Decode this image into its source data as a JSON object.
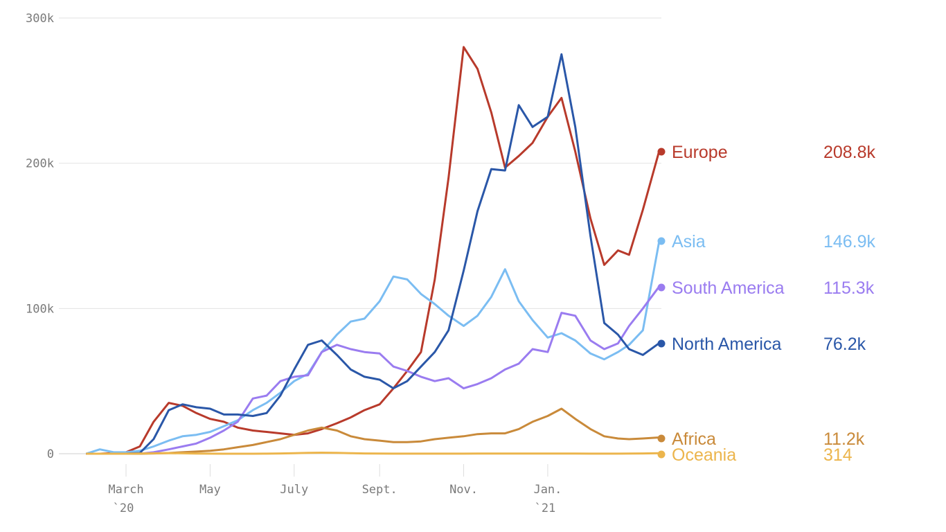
{
  "chart_data": {
    "type": "line",
    "title": "",
    "xlabel": "",
    "ylabel": "",
    "ylim": [
      0,
      300000
    ],
    "xlim": [
      "2020-02-01",
      "2021-03-23"
    ],
    "grid": "horizontal",
    "legend": "right, end-of-line labels",
    "y_ticks": [
      {
        "value": 0,
        "label": "0"
      },
      {
        "value": 100000,
        "label": "100k"
      },
      {
        "value": 200000,
        "label": "200k"
      },
      {
        "value": 300000,
        "label": "300k"
      }
    ],
    "x_ticks": [
      {
        "date": "2020-03-01",
        "label": "March",
        "sublabel": "`20"
      },
      {
        "date": "2020-05-01",
        "label": "May",
        "sublabel": ""
      },
      {
        "date": "2020-07-01",
        "label": "July",
        "sublabel": ""
      },
      {
        "date": "2020-09-01",
        "label": "Sept.",
        "sublabel": ""
      },
      {
        "date": "2020-11-01",
        "label": "Nov.",
        "sublabel": ""
      },
      {
        "date": "2021-01-01",
        "label": "Jan.",
        "sublabel": "`21"
      }
    ],
    "x": [
      "2020-02-01",
      "2020-02-11",
      "2020-02-21",
      "2020-03-01",
      "2020-03-11",
      "2020-03-21",
      "2020-04-01",
      "2020-04-11",
      "2020-04-21",
      "2020-05-01",
      "2020-05-11",
      "2020-05-21",
      "2020-06-01",
      "2020-06-11",
      "2020-06-21",
      "2020-07-01",
      "2020-07-11",
      "2020-07-21",
      "2020-08-01",
      "2020-08-11",
      "2020-08-21",
      "2020-09-01",
      "2020-09-11",
      "2020-09-21",
      "2020-10-01",
      "2020-10-11",
      "2020-10-21",
      "2020-11-01",
      "2020-11-11",
      "2020-11-21",
      "2020-12-01",
      "2020-12-11",
      "2020-12-21",
      "2021-01-01",
      "2021-01-11",
      "2021-01-21",
      "2021-02-01",
      "2021-02-11",
      "2021-02-21",
      "2021-03-01",
      "2021-03-11",
      "2021-03-23"
    ],
    "series": [
      {
        "name": "Europe",
        "last_label": "208.8k",
        "color": "#b83a2b",
        "values": [
          0,
          0,
          500,
          1000,
          5000,
          22000,
          35000,
          33000,
          28000,
          24000,
          22000,
          18000,
          16000,
          15000,
          14000,
          13000,
          14000,
          17000,
          21000,
          25000,
          30000,
          34000,
          45000,
          57000,
          70000,
          120000,
          190000,
          280000,
          265000,
          235000,
          197000,
          205000,
          214000,
          232000,
          245000,
          208000,
          162000,
          130000,
          140000,
          137000,
          168000,
          208800
        ]
      },
      {
        "name": "Asia",
        "last_label": "146.9k",
        "color": "#7bbdf2",
        "values": [
          0,
          3000,
          1000,
          1000,
          2000,
          5000,
          9000,
          12000,
          13000,
          15000,
          19000,
          23000,
          30000,
          35000,
          42000,
          50000,
          55000,
          70000,
          82000,
          91000,
          93000,
          105000,
          122000,
          120000,
          110000,
          103000,
          95000,
          88000,
          95000,
          108000,
          127000,
          105000,
          92000,
          80000,
          83000,
          78000,
          69000,
          65000,
          70000,
          75000,
          85000,
          146900
        ]
      },
      {
        "name": "South America",
        "last_label": "115.3k",
        "color": "#9a7cf0",
        "values": [
          0,
          0,
          0,
          0,
          0,
          1000,
          3000,
          5000,
          7000,
          11000,
          16000,
          22000,
          38000,
          40000,
          50000,
          53000,
          54000,
          70000,
          75000,
          72000,
          70000,
          69000,
          60000,
          57000,
          53000,
          50000,
          52000,
          45000,
          48000,
          52000,
          58000,
          62000,
          72000,
          70000,
          97000,
          95000,
          78000,
          72000,
          76000,
          88000,
          100000,
          115300
        ]
      },
      {
        "name": "North America",
        "last_label": "76.2k",
        "color": "#2a57a8",
        "values": [
          0,
          0,
          0,
          0,
          500,
          10000,
          30000,
          34000,
          32000,
          31000,
          27000,
          27000,
          26000,
          28000,
          40000,
          58000,
          75000,
          78000,
          68000,
          58000,
          53000,
          51000,
          45000,
          50000,
          60000,
          70000,
          85000,
          126000,
          167000,
          196000,
          195000,
          240000,
          225000,
          232000,
          275000,
          225000,
          150000,
          90000,
          82000,
          72000,
          68000,
          76200
        ]
      },
      {
        "name": "Africa",
        "last_label": "11.2k",
        "color": "#c98a3a",
        "values": [
          0,
          0,
          0,
          0,
          0,
          200,
          500,
          1000,
          1500,
          2000,
          3000,
          4500,
          6000,
          8000,
          10000,
          13000,
          16000,
          18000,
          16000,
          12000,
          10000,
          9000,
          8000,
          8000,
          8500,
          10000,
          11000,
          12000,
          13500,
          14000,
          14000,
          17000,
          22000,
          26000,
          31000,
          24000,
          17000,
          12000,
          10500,
          10000,
          10500,
          11200
        ]
      },
      {
        "name": "Oceania",
        "last_label": "314",
        "color": "#ecb54c",
        "values": [
          0,
          0,
          0,
          0,
          100,
          300,
          400,
          300,
          100,
          50,
          20,
          20,
          20,
          50,
          200,
          400,
          600,
          700,
          600,
          400,
          200,
          100,
          50,
          30,
          30,
          30,
          30,
          50,
          80,
          100,
          100,
          100,
          100,
          100,
          100,
          100,
          50,
          40,
          30,
          100,
          200,
          314
        ]
      }
    ]
  }
}
